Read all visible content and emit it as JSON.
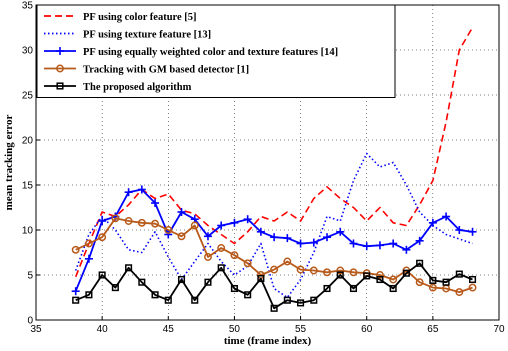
{
  "chart_data": {
    "type": "line",
    "xlabel": "time (frame index)",
    "ylabel": "mean tracking error",
    "xlim": [
      35,
      70
    ],
    "ylim": [
      0,
      35
    ],
    "xticks": [
      35,
      40,
      45,
      50,
      55,
      60,
      65,
      70
    ],
    "yticks": [
      0,
      5,
      10,
      15,
      20,
      25,
      30,
      35
    ],
    "grid": true,
    "legend_position": "top-left",
    "series": [
      {
        "name": "PF using color feature [5]",
        "color": "#ff0000",
        "dash": "dashed",
        "marker": "none",
        "x": [
          38,
          39,
          40,
          41,
          42,
          43,
          44,
          45,
          46,
          47,
          48,
          49,
          50,
          51,
          52,
          53,
          54,
          55,
          56,
          57,
          58,
          59,
          60,
          61,
          62,
          63,
          64,
          65,
          66,
          67,
          68
        ],
        "y": [
          4.8,
          8.5,
          12.0,
          11.5,
          12.8,
          14.5,
          13.5,
          14.0,
          12.2,
          11.8,
          10.5,
          9.5,
          8.5,
          9.8,
          11.5,
          11.0,
          12.0,
          11.0,
          13.5,
          14.8,
          13.5,
          12.5,
          11.0,
          12.5,
          10.8,
          10.5,
          12.8,
          15.5,
          22.0,
          30.0,
          32.5
        ]
      },
      {
        "name": "PF using texture feature [13]",
        "color": "#0000ff",
        "dash": "dotted",
        "marker": "none",
        "x": [
          38,
          39,
          40,
          41,
          42,
          43,
          44,
          45,
          46,
          47,
          48,
          49,
          50,
          51,
          52,
          53,
          54,
          55,
          56,
          57,
          58,
          59,
          60,
          61,
          62,
          63,
          64,
          65,
          66,
          67,
          68
        ],
        "y": [
          5.5,
          9.5,
          11.5,
          10.0,
          7.8,
          7.5,
          9.8,
          7.0,
          4.5,
          6.5,
          8.5,
          6.5,
          5.0,
          6.0,
          8.5,
          3.5,
          2.5,
          4.5,
          7.5,
          11.5,
          11.0,
          15.5,
          18.5,
          17.0,
          17.5,
          15.0,
          12.0,
          10.5,
          9.5,
          9.0,
          8.5
        ]
      },
      {
        "name": "PF using equally weighted color and texture features [14]",
        "color": "#0000ff",
        "dash": "solid",
        "marker": "plus",
        "x": [
          38,
          39,
          40,
          41,
          42,
          43,
          44,
          45,
          46,
          47,
          48,
          49,
          50,
          51,
          52,
          53,
          54,
          55,
          56,
          57,
          58,
          59,
          60,
          61,
          62,
          63,
          64,
          65,
          66,
          67,
          68
        ],
        "y": [
          3.2,
          6.8,
          11.0,
          11.5,
          14.2,
          14.5,
          13.0,
          9.5,
          12.0,
          11.2,
          9.3,
          10.5,
          10.8,
          11.2,
          9.8,
          9.2,
          9.1,
          8.5,
          8.6,
          9.2,
          9.8,
          8.5,
          8.2,
          8.3,
          8.5,
          7.8,
          8.8,
          10.8,
          11.5,
          10.0,
          9.8
        ]
      },
      {
        "name": "Tracking with GM based detector [1]",
        "color": "#b85a1a",
        "dash": "solid",
        "marker": "circle",
        "x": [
          38,
          39,
          40,
          41,
          42,
          43,
          44,
          45,
          46,
          47,
          48,
          49,
          50,
          51,
          52,
          53,
          54,
          55,
          56,
          57,
          58,
          59,
          60,
          61,
          62,
          63,
          64,
          65,
          66,
          67,
          68
        ],
        "y": [
          7.8,
          8.5,
          9.2,
          11.3,
          11.0,
          10.8,
          10.7,
          10.0,
          9.3,
          10.5,
          7.0,
          8.0,
          7.2,
          6.3,
          5.0,
          5.6,
          6.5,
          5.6,
          5.5,
          5.3,
          5.5,
          5.3,
          5.2,
          5.0,
          4.5,
          5.5,
          4.2,
          3.6,
          3.5,
          3.1,
          3.6
        ]
      },
      {
        "name": "The proposed algorithm",
        "color": "#000000",
        "dash": "solid",
        "marker": "square",
        "x": [
          38,
          39,
          40,
          41,
          42,
          43,
          44,
          45,
          46,
          47,
          48,
          49,
          50,
          51,
          52,
          53,
          54,
          55,
          56,
          57,
          58,
          59,
          60,
          61,
          62,
          63,
          64,
          65,
          66,
          67,
          68
        ],
        "y": [
          2.2,
          2.8,
          5.0,
          3.6,
          5.8,
          4.2,
          2.8,
          2.2,
          4.5,
          2.2,
          4.2,
          5.8,
          3.5,
          2.8,
          4.6,
          1.3,
          2.2,
          1.9,
          2.2,
          3.5,
          5.0,
          3.5,
          4.9,
          4.5,
          3.5,
          5.2,
          6.3,
          4.4,
          4.2,
          5.1,
          4.5
        ]
      }
    ]
  }
}
